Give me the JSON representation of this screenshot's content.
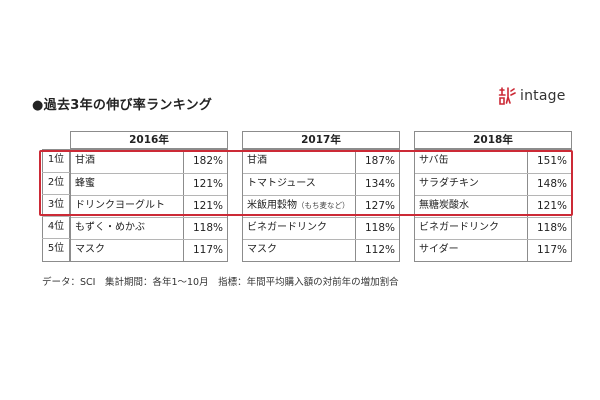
{
  "chart_data": {
    "type": "table",
    "title": "●過去3年の伸び率ランキング",
    "brand": "intage",
    "ranks": [
      "1位",
      "2位",
      "3位",
      "4位",
      "5位"
    ],
    "columns": [
      {
        "year": "2016年",
        "rows": [
          {
            "item": "甘酒",
            "note": "",
            "value": "182%"
          },
          {
            "item": "蜂蜜",
            "note": "",
            "value": "121%"
          },
          {
            "item": "ドリンクヨーグルト",
            "note": "",
            "value": "121%"
          },
          {
            "item": "もずく・めかぶ",
            "note": "",
            "value": "118%"
          },
          {
            "item": "マスク",
            "note": "",
            "value": "117%"
          }
        ]
      },
      {
        "year": "2017年",
        "rows": [
          {
            "item": "甘酒",
            "note": "",
            "value": "187%"
          },
          {
            "item": "トマトジュース",
            "note": "",
            "value": "134%"
          },
          {
            "item": "米飯用穀物",
            "note": "（もち麦など）",
            "value": "127%"
          },
          {
            "item": "ビネガードリンク",
            "note": "",
            "value": "118%"
          },
          {
            "item": "マスク",
            "note": "",
            "value": "112%"
          }
        ]
      },
      {
        "year": "2018年",
        "rows": [
          {
            "item": "サバ缶",
            "note": "",
            "value": "151%"
          },
          {
            "item": "サラダチキン",
            "note": "",
            "value": "148%"
          },
          {
            "item": "無糖炭酸水",
            "note": "",
            "value": "121%"
          },
          {
            "item": "ビネガードリンク",
            "note": "",
            "value": "118%"
          },
          {
            "item": "サイダー",
            "note": "",
            "value": "117%"
          }
        ]
      }
    ],
    "highlight_top_n": 3,
    "highlight_color": "#cc2a36",
    "source_note": "データ：SCI　集計期間：各年1～10月　指標：年間平均購入額の対前年の増加割合"
  }
}
